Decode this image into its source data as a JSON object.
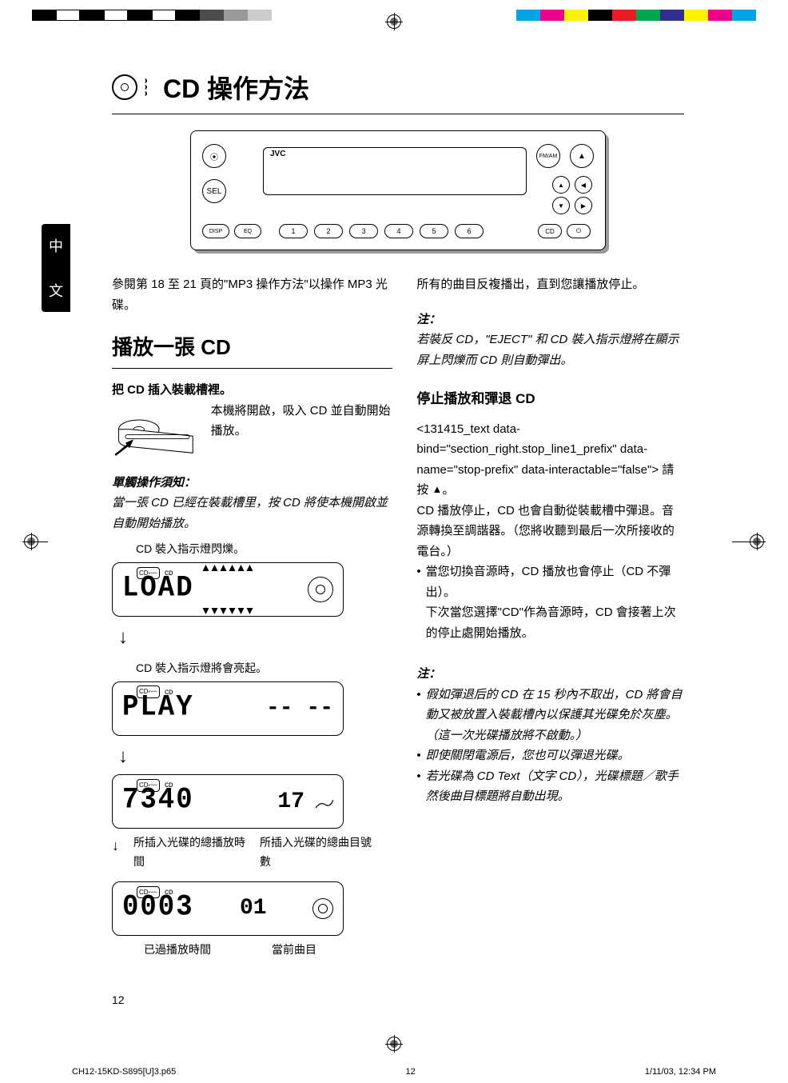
{
  "registration_colors_left": [
    "#000000",
    "#ffffff",
    "#000000",
    "#ffffff",
    "#000000",
    "#ffffff",
    "#000000",
    "#4d4d4d",
    "#999999",
    "#cccccc"
  ],
  "registration_colors_right": [
    "#00a4e4",
    "#ec008c",
    "#fff200",
    "#000000",
    "#ed1c24",
    "#00a651",
    "#2e3192",
    "#fff200",
    "#ec008c",
    "#00a4e4"
  ],
  "side_tab": {
    "char1": "中",
    "char2": "文"
  },
  "title": "CD 操作方法",
  "intro": "參閱第 18 至 21 頁的\"MP3 操作方法\"以操作 MP3 光碟。",
  "section_play": {
    "heading": "播放一張 CD",
    "step1_bold": "把 CD 插入裝載槽裡。",
    "step1_body": "本機將開啟，吸入 CD 並自動開始播放。",
    "one_touch_head": "單觸操作須知：",
    "one_touch_body": "當一張 CD 已經在裝載槽里，按 CD 將使本機開啟並自動開始播放。",
    "caption_load": "CD 裝入指示燈閃爍。",
    "caption_play": "CD 裝入指示燈將會亮起。",
    "panel_load": "LOAD",
    "panel_play": "PLAY",
    "panel_play_right": "-- --",
    "panel_time": "7340",
    "panel_time_right": "17",
    "panel_elapsed": "0003",
    "panel_elapsed_right": "01",
    "label_total_time": "所插入光碟的總播放時間",
    "label_total_tracks": "所插入光碟的總曲目號數",
    "label_elapsed": "已過播放時間",
    "label_current": "當前曲目"
  },
  "section_right": {
    "repeat_line": "所有的曲目反複播出，直到您讓播放停止。",
    "note1_head": "注：",
    "note1_body": "若裝反 CD，\"EJECT\" 和 CD 裝入指示燈將在顯示屏上閃爍而 CD 則自動彈出。",
    "stop_heading": "停止播放和彈退 CD",
    "stop_line1_prefix": "請按 ",
    "stop_line1_suffix": "。",
    "stop_body": "CD 播放停止，CD 也會自動從裝載槽中彈退。音源轉換至調諧器。（您將收聽到最后一次所接收的電台。）",
    "stop_bullet": "當您切換音源時，CD 播放也會停止（CD 不彈出）。",
    "stop_bullet_cont": "下次當您選擇\"CD\"作為音源時，CD 會接著上次的停止處開始播放。",
    "note2_head": "注：",
    "note2_b1": "假如彈退后的 CD 在 15 秒內不取出，CD 將會自動又被放置入裝載槽內以保護其光碟免於灰塵。（這一次光碟播放將不啟動。）",
    "note2_b2": "即使關閉電源后，您也可以彈退光碟。",
    "note2_b3": "若光碟為 CD Text（文字 CD），光碟標題／歌手然後曲目標題將自動出現。"
  },
  "device": {
    "brand": "JVC",
    "num_buttons": [
      "1",
      "2",
      "3",
      "4",
      "5",
      "6"
    ]
  },
  "page_number": "12",
  "footer": {
    "file": "CH12-15KD-S895[U]3.p65",
    "page": "12",
    "datetime": "1/11/03, 12:34 PM"
  }
}
